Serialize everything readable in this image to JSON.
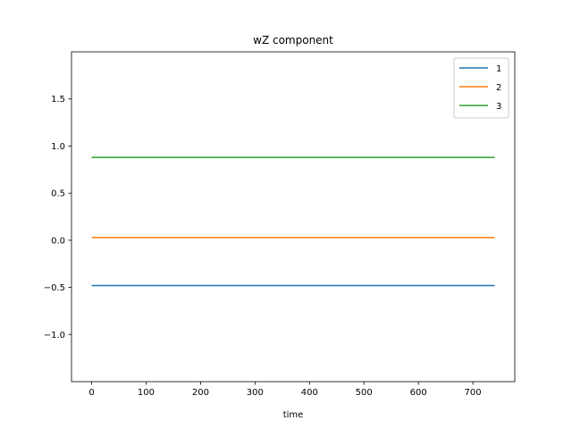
{
  "chart_data": {
    "type": "line",
    "title": "wZ component",
    "xlabel": "time",
    "ylabel": "",
    "xlim": [
      -37,
      777
    ],
    "ylim": [
      -1.5,
      2.0
    ],
    "xticks": [
      0,
      100,
      200,
      300,
      400,
      500,
      600,
      700
    ],
    "yticks": [
      -1.0,
      -0.5,
      0.0,
      0.5,
      1.0,
      1.5
    ],
    "ytick_labels": [
      "−1.0",
      "−0.5",
      "0.0",
      "0.5",
      "1.0",
      "1.5"
    ],
    "grid": false,
    "legend_position": "top-right",
    "series": [
      {
        "name": "1",
        "color": "#1f77b4",
        "x": [
          0,
          740
        ],
        "values": [
          -0.48,
          -0.48
        ]
      },
      {
        "name": "2",
        "color": "#ff7f0e",
        "x": [
          0,
          740
        ],
        "values": [
          0.03,
          0.03
        ]
      },
      {
        "name": "3",
        "color": "#2ca02c",
        "x": [
          0,
          740
        ],
        "values": [
          0.88,
          0.88
        ]
      }
    ]
  }
}
